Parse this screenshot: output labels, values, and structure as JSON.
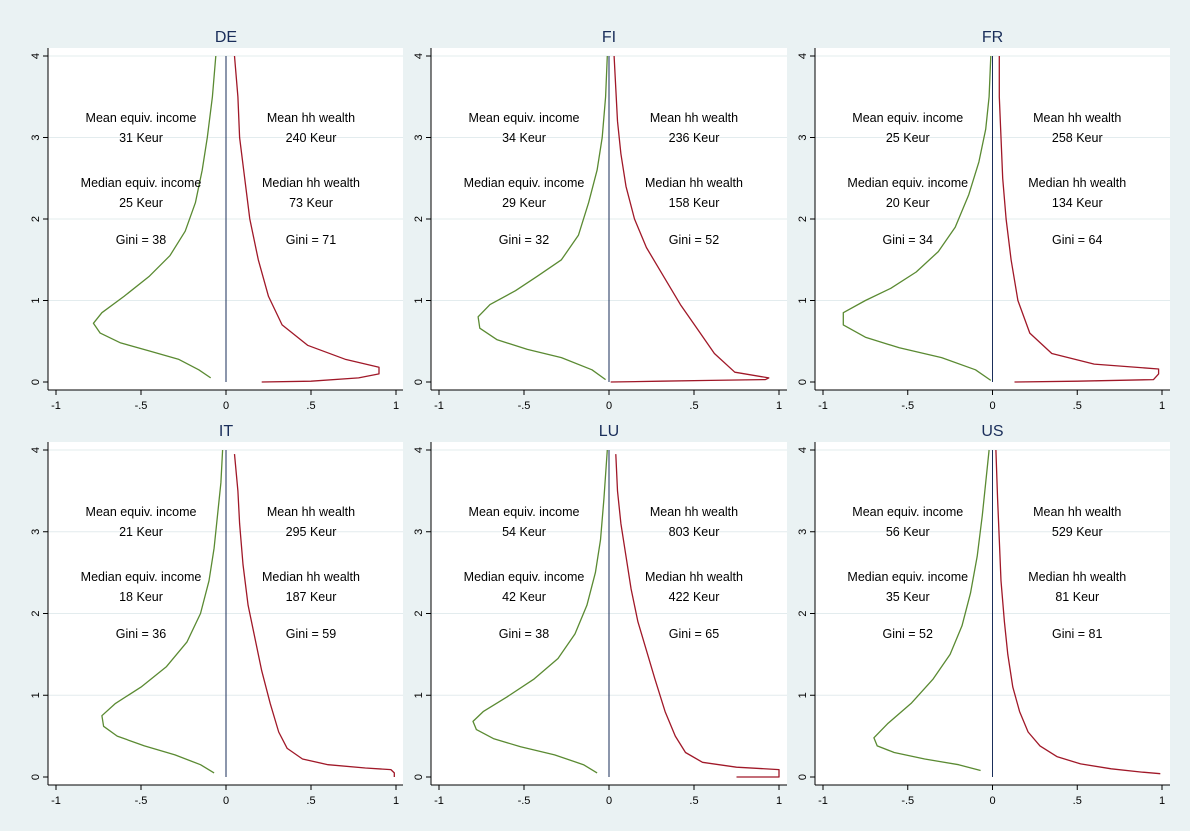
{
  "chart_data": [
    {
      "type": "line",
      "title": "DE",
      "xlim": [
        -1,
        1
      ],
      "ylim": [
        0,
        4
      ],
      "xticks": [
        "-1",
        "-.5",
        "0",
        ".5",
        "1"
      ],
      "yticks": [
        "0",
        "1",
        "2",
        "3",
        "4"
      ],
      "grid": true,
      "colors": {
        "income": "#5a8a32",
        "wealth": "#a01828",
        "axis_zero": "#1a2e5a"
      },
      "series": [
        {
          "points": [
            [
              -0.09,
              0.05
            ],
            [
              -0.16,
              0.15
            ],
            [
              -0.28,
              0.28
            ],
            [
              -0.45,
              0.38
            ],
            [
              -0.62,
              0.48
            ],
            [
              -0.74,
              0.6
            ],
            [
              -0.78,
              0.72
            ],
            [
              -0.73,
              0.85
            ],
            [
              -0.6,
              1.05
            ],
            [
              -0.45,
              1.3
            ],
            [
              -0.33,
              1.55
            ],
            [
              -0.24,
              1.85
            ],
            [
              -0.18,
              2.2
            ],
            [
              -0.14,
              2.6
            ],
            [
              -0.11,
              3.0
            ],
            [
              -0.08,
              3.5
            ],
            [
              -0.06,
              4.0
            ]
          ]
        },
        {
          "points": [
            [
              0.21,
              0.0
            ],
            [
              0.5,
              0.01
            ],
            [
              0.78,
              0.05
            ],
            [
              0.9,
              0.1
            ],
            [
              0.9,
              0.18
            ],
            [
              0.7,
              0.28
            ],
            [
              0.48,
              0.45
            ],
            [
              0.33,
              0.7
            ],
            [
              0.25,
              1.05
            ],
            [
              0.19,
              1.5
            ],
            [
              0.14,
              2.0
            ],
            [
              0.11,
              2.5
            ],
            [
              0.08,
              3.0
            ],
            [
              0.07,
              3.5
            ],
            [
              0.05,
              4.0
            ]
          ]
        }
      ],
      "annotations": {
        "mean_income_label": "Mean equiv. income",
        "mean_income_value": "31 Keur",
        "mean_wealth_label": "Mean hh wealth",
        "mean_wealth_value": "240 Keur",
        "median_income_label": "Median equiv. income",
        "median_income_value": "25 Keur",
        "median_wealth_label": "Median hh wealth",
        "median_wealth_value": "73 Keur",
        "gini_income": "Gini = 38",
        "gini_wealth": "Gini = 71"
      }
    },
    {
      "type": "line",
      "title": "FI",
      "xlim": [
        -1,
        1
      ],
      "ylim": [
        0,
        4
      ],
      "xticks": [
        "-1",
        "-.5",
        "0",
        ".5",
        "1"
      ],
      "yticks": [
        "0",
        "1",
        "2",
        "3",
        "4"
      ],
      "grid": true,
      "colors": {
        "income": "#5a8a32",
        "wealth": "#a01828",
        "axis_zero": "#1a2e5a"
      },
      "series": [
        {
          "points": [
            [
              -0.02,
              0.03
            ],
            [
              -0.1,
              0.15
            ],
            [
              -0.28,
              0.3
            ],
            [
              -0.48,
              0.4
            ],
            [
              -0.66,
              0.52
            ],
            [
              -0.76,
              0.66
            ],
            [
              -0.77,
              0.8
            ],
            [
              -0.7,
              0.95
            ],
            [
              -0.55,
              1.12
            ],
            [
              -0.42,
              1.3
            ],
            [
              -0.28,
              1.5
            ],
            [
              -0.18,
              1.8
            ],
            [
              -0.12,
              2.2
            ],
            [
              -0.07,
              2.6
            ],
            [
              -0.04,
              3.0
            ],
            [
              -0.02,
              3.5
            ],
            [
              -0.01,
              4.0
            ]
          ]
        },
        {
          "points": [
            [
              0.01,
              0.0
            ],
            [
              0.3,
              0.01
            ],
            [
              0.6,
              0.02
            ],
            [
              0.92,
              0.03
            ],
            [
              0.94,
              0.05
            ],
            [
              0.74,
              0.12
            ],
            [
              0.62,
              0.35
            ],
            [
              0.52,
              0.65
            ],
            [
              0.42,
              0.95
            ],
            [
              0.32,
              1.3
            ],
            [
              0.22,
              1.65
            ],
            [
              0.15,
              2.0
            ],
            [
              0.1,
              2.4
            ],
            [
              0.07,
              2.8
            ],
            [
              0.05,
              3.2
            ],
            [
              0.04,
              3.6
            ],
            [
              0.03,
              4.0
            ]
          ]
        }
      ],
      "annotations": {
        "mean_income_label": "Mean equiv. income",
        "mean_income_value": "34 Keur",
        "mean_wealth_label": "Mean hh wealth",
        "mean_wealth_value": "236 Keur",
        "median_income_label": "Median equiv. income",
        "median_income_value": "29 Keur",
        "median_wealth_label": "Median hh wealth",
        "median_wealth_value": "158 Keur",
        "gini_income": "Gini = 32",
        "gini_wealth": "Gini = 52"
      }
    },
    {
      "type": "line",
      "title": "FR",
      "xlim": [
        -1,
        1
      ],
      "ylim": [
        0,
        4
      ],
      "xticks": [
        "-1",
        "-.5",
        "0",
        ".5",
        "1"
      ],
      "yticks": [
        "0",
        "1",
        "2",
        "3",
        "4"
      ],
      "grid": true,
      "colors": {
        "income": "#5a8a32",
        "wealth": "#a01828",
        "axis_zero": "#1a2e5a"
      },
      "series": [
        {
          "points": [
            [
              -0.01,
              0.02
            ],
            [
              -0.1,
              0.15
            ],
            [
              -0.3,
              0.3
            ],
            [
              -0.55,
              0.42
            ],
            [
              -0.75,
              0.55
            ],
            [
              -0.88,
              0.7
            ],
            [
              -0.88,
              0.85
            ],
            [
              -0.75,
              1.0
            ],
            [
              -0.6,
              1.15
            ],
            [
              -0.45,
              1.35
            ],
            [
              -0.32,
              1.6
            ],
            [
              -0.22,
              1.9
            ],
            [
              -0.14,
              2.3
            ],
            [
              -0.08,
              2.7
            ],
            [
              -0.04,
              3.1
            ],
            [
              -0.02,
              3.5
            ],
            [
              -0.01,
              4.0
            ]
          ]
        },
        {
          "points": [
            [
              0.13,
              0.0
            ],
            [
              0.5,
              0.01
            ],
            [
              0.95,
              0.03
            ],
            [
              0.98,
              0.1
            ],
            [
              0.98,
              0.16
            ],
            [
              0.6,
              0.22
            ],
            [
              0.35,
              0.35
            ],
            [
              0.22,
              0.6
            ],
            [
              0.15,
              1.0
            ],
            [
              0.11,
              1.5
            ],
            [
              0.08,
              2.0
            ],
            [
              0.06,
              2.5
            ],
            [
              0.05,
              3.0
            ],
            [
              0.04,
              3.5
            ],
            [
              0.04,
              4.0
            ]
          ]
        }
      ],
      "annotations": {
        "mean_income_label": "Mean equiv. income",
        "mean_income_value": "25 Keur",
        "mean_wealth_label": "Mean hh wealth",
        "mean_wealth_value": "258 Keur",
        "median_income_label": "Median equiv. income",
        "median_income_value": "20 Keur",
        "median_wealth_label": "Median hh wealth",
        "median_wealth_value": "134 Keur",
        "gini_income": "Gini = 34",
        "gini_wealth": "Gini = 64"
      }
    },
    {
      "type": "line",
      "title": "IT",
      "xlim": [
        -1,
        1
      ],
      "ylim": [
        0,
        4
      ],
      "xticks": [
        "-1",
        "-.5",
        "0",
        ".5",
        "1"
      ],
      "yticks": [
        "0",
        "1",
        "2",
        "3",
        "4"
      ],
      "grid": true,
      "colors": {
        "income": "#5a8a32",
        "wealth": "#a01828",
        "axis_zero": "#1a2e5a"
      },
      "series": [
        {
          "points": [
            [
              -0.07,
              0.05
            ],
            [
              -0.15,
              0.15
            ],
            [
              -0.3,
              0.27
            ],
            [
              -0.48,
              0.38
            ],
            [
              -0.64,
              0.5
            ],
            [
              -0.72,
              0.62
            ],
            [
              -0.73,
              0.75
            ],
            [
              -0.65,
              0.9
            ],
            [
              -0.5,
              1.1
            ],
            [
              -0.35,
              1.35
            ],
            [
              -0.23,
              1.65
            ],
            [
              -0.15,
              2.0
            ],
            [
              -0.1,
              2.4
            ],
            [
              -0.07,
              2.8
            ],
            [
              -0.05,
              3.2
            ],
            [
              -0.03,
              3.6
            ],
            [
              -0.02,
              4.0
            ]
          ]
        },
        {
          "points": [
            [
              0.99,
              0.0
            ],
            [
              0.99,
              0.05
            ],
            [
              0.97,
              0.09
            ],
            [
              0.82,
              0.11
            ],
            [
              0.6,
              0.15
            ],
            [
              0.45,
              0.22
            ],
            [
              0.36,
              0.35
            ],
            [
              0.31,
              0.55
            ],
            [
              0.26,
              0.9
            ],
            [
              0.21,
              1.3
            ],
            [
              0.17,
              1.7
            ],
            [
              0.13,
              2.1
            ],
            [
              0.1,
              2.6
            ],
            [
              0.08,
              3.1
            ],
            [
              0.07,
              3.5
            ],
            [
              0.05,
              3.95
            ]
          ]
        }
      ],
      "annotations": {
        "mean_income_label": "Mean equiv. income",
        "mean_income_value": "21 Keur",
        "mean_wealth_label": "Mean hh wealth",
        "mean_wealth_value": "295 Keur",
        "median_income_label": "Median equiv. income",
        "median_income_value": "18 Keur",
        "median_wealth_label": "Median hh wealth",
        "median_wealth_value": "187 Keur",
        "gini_income": "Gini = 36",
        "gini_wealth": "Gini = 59"
      }
    },
    {
      "type": "line",
      "title": "LU",
      "xlim": [
        -1,
        1
      ],
      "ylim": [
        0,
        4
      ],
      "xticks": [
        "-1",
        "-.5",
        "0",
        ".5",
        "1"
      ],
      "yticks": [
        "0",
        "1",
        "2",
        "3",
        "4"
      ],
      "grid": true,
      "colors": {
        "income": "#5a8a32",
        "wealth": "#a01828",
        "axis_zero": "#1a2e5a"
      },
      "series": [
        {
          "points": [
            [
              -0.07,
              0.05
            ],
            [
              -0.15,
              0.15
            ],
            [
              -0.32,
              0.27
            ],
            [
              -0.52,
              0.37
            ],
            [
              -0.68,
              0.47
            ],
            [
              -0.78,
              0.58
            ],
            [
              -0.8,
              0.68
            ],
            [
              -0.74,
              0.8
            ],
            [
              -0.6,
              0.98
            ],
            [
              -0.44,
              1.2
            ],
            [
              -0.3,
              1.45
            ],
            [
              -0.2,
              1.75
            ],
            [
              -0.13,
              2.1
            ],
            [
              -0.08,
              2.5
            ],
            [
              -0.05,
              2.9
            ],
            [
              -0.03,
              3.4
            ],
            [
              -0.01,
              4.0
            ]
          ]
        },
        {
          "points": [
            [
              0.75,
              0.0
            ],
            [
              1.0,
              0.0
            ],
            [
              1.0,
              0.09
            ],
            [
              0.75,
              0.12
            ],
            [
              0.55,
              0.18
            ],
            [
              0.45,
              0.3
            ],
            [
              0.39,
              0.5
            ],
            [
              0.33,
              0.8
            ],
            [
              0.27,
              1.2
            ],
            [
              0.22,
              1.55
            ],
            [
              0.17,
              1.9
            ],
            [
              0.13,
              2.3
            ],
            [
              0.1,
              2.7
            ],
            [
              0.07,
              3.1
            ],
            [
              0.05,
              3.5
            ],
            [
              0.04,
              3.95
            ]
          ]
        }
      ],
      "annotations": {
        "mean_income_label": "Mean equiv. income",
        "mean_income_value": "54 Keur",
        "mean_wealth_label": "Mean hh wealth",
        "mean_wealth_value": "803 Keur",
        "median_income_label": "Median equiv. income",
        "median_income_value": "42 Keur",
        "median_wealth_label": "Median hh wealth",
        "median_wealth_value": "422 Keur",
        "gini_income": "Gini = 38",
        "gini_wealth": "Gini = 65"
      }
    },
    {
      "type": "line",
      "title": "US",
      "xlim": [
        -1,
        1
      ],
      "ylim": [
        0,
        4
      ],
      "xticks": [
        "-1",
        "-.5",
        "0",
        ".5",
        "1"
      ],
      "yticks": [
        "0",
        "1",
        "2",
        "3",
        "4"
      ],
      "grid": true,
      "colors": {
        "income": "#5a8a32",
        "wealth": "#a01828",
        "axis_zero": "#1a2e5a"
      },
      "series": [
        {
          "points": [
            [
              -0.07,
              0.08
            ],
            [
              -0.2,
              0.15
            ],
            [
              -0.4,
              0.22
            ],
            [
              -0.58,
              0.3
            ],
            [
              -0.68,
              0.38
            ],
            [
              -0.7,
              0.48
            ],
            [
              -0.62,
              0.65
            ],
            [
              -0.48,
              0.9
            ],
            [
              -0.35,
              1.2
            ],
            [
              -0.25,
              1.5
            ],
            [
              -0.18,
              1.85
            ],
            [
              -0.13,
              2.25
            ],
            [
              -0.09,
              2.7
            ],
            [
              -0.06,
              3.2
            ],
            [
              -0.04,
              3.6
            ],
            [
              -0.02,
              4.0
            ]
          ]
        },
        {
          "points": [
            [
              0.99,
              0.04
            ],
            [
              0.88,
              0.06
            ],
            [
              0.7,
              0.1
            ],
            [
              0.52,
              0.16
            ],
            [
              0.38,
              0.25
            ],
            [
              0.28,
              0.38
            ],
            [
              0.21,
              0.55
            ],
            [
              0.16,
              0.8
            ],
            [
              0.12,
              1.1
            ],
            [
              0.09,
              1.5
            ],
            [
              0.07,
              1.9
            ],
            [
              0.05,
              2.4
            ],
            [
              0.04,
              2.9
            ],
            [
              0.03,
              3.4
            ],
            [
              0.02,
              4.0
            ]
          ]
        }
      ],
      "annotations": {
        "mean_income_label": "Mean equiv. income",
        "mean_income_value": "56 Keur",
        "mean_wealth_label": "Mean hh wealth",
        "mean_wealth_value": "529 Keur",
        "median_income_label": "Median equiv. income",
        "median_income_value": "35 Keur",
        "median_wealth_label": "Median hh wealth",
        "median_wealth_value": "81 Keur",
        "gini_income": "Gini = 52",
        "gini_wealth": "Gini = 81"
      }
    }
  ]
}
